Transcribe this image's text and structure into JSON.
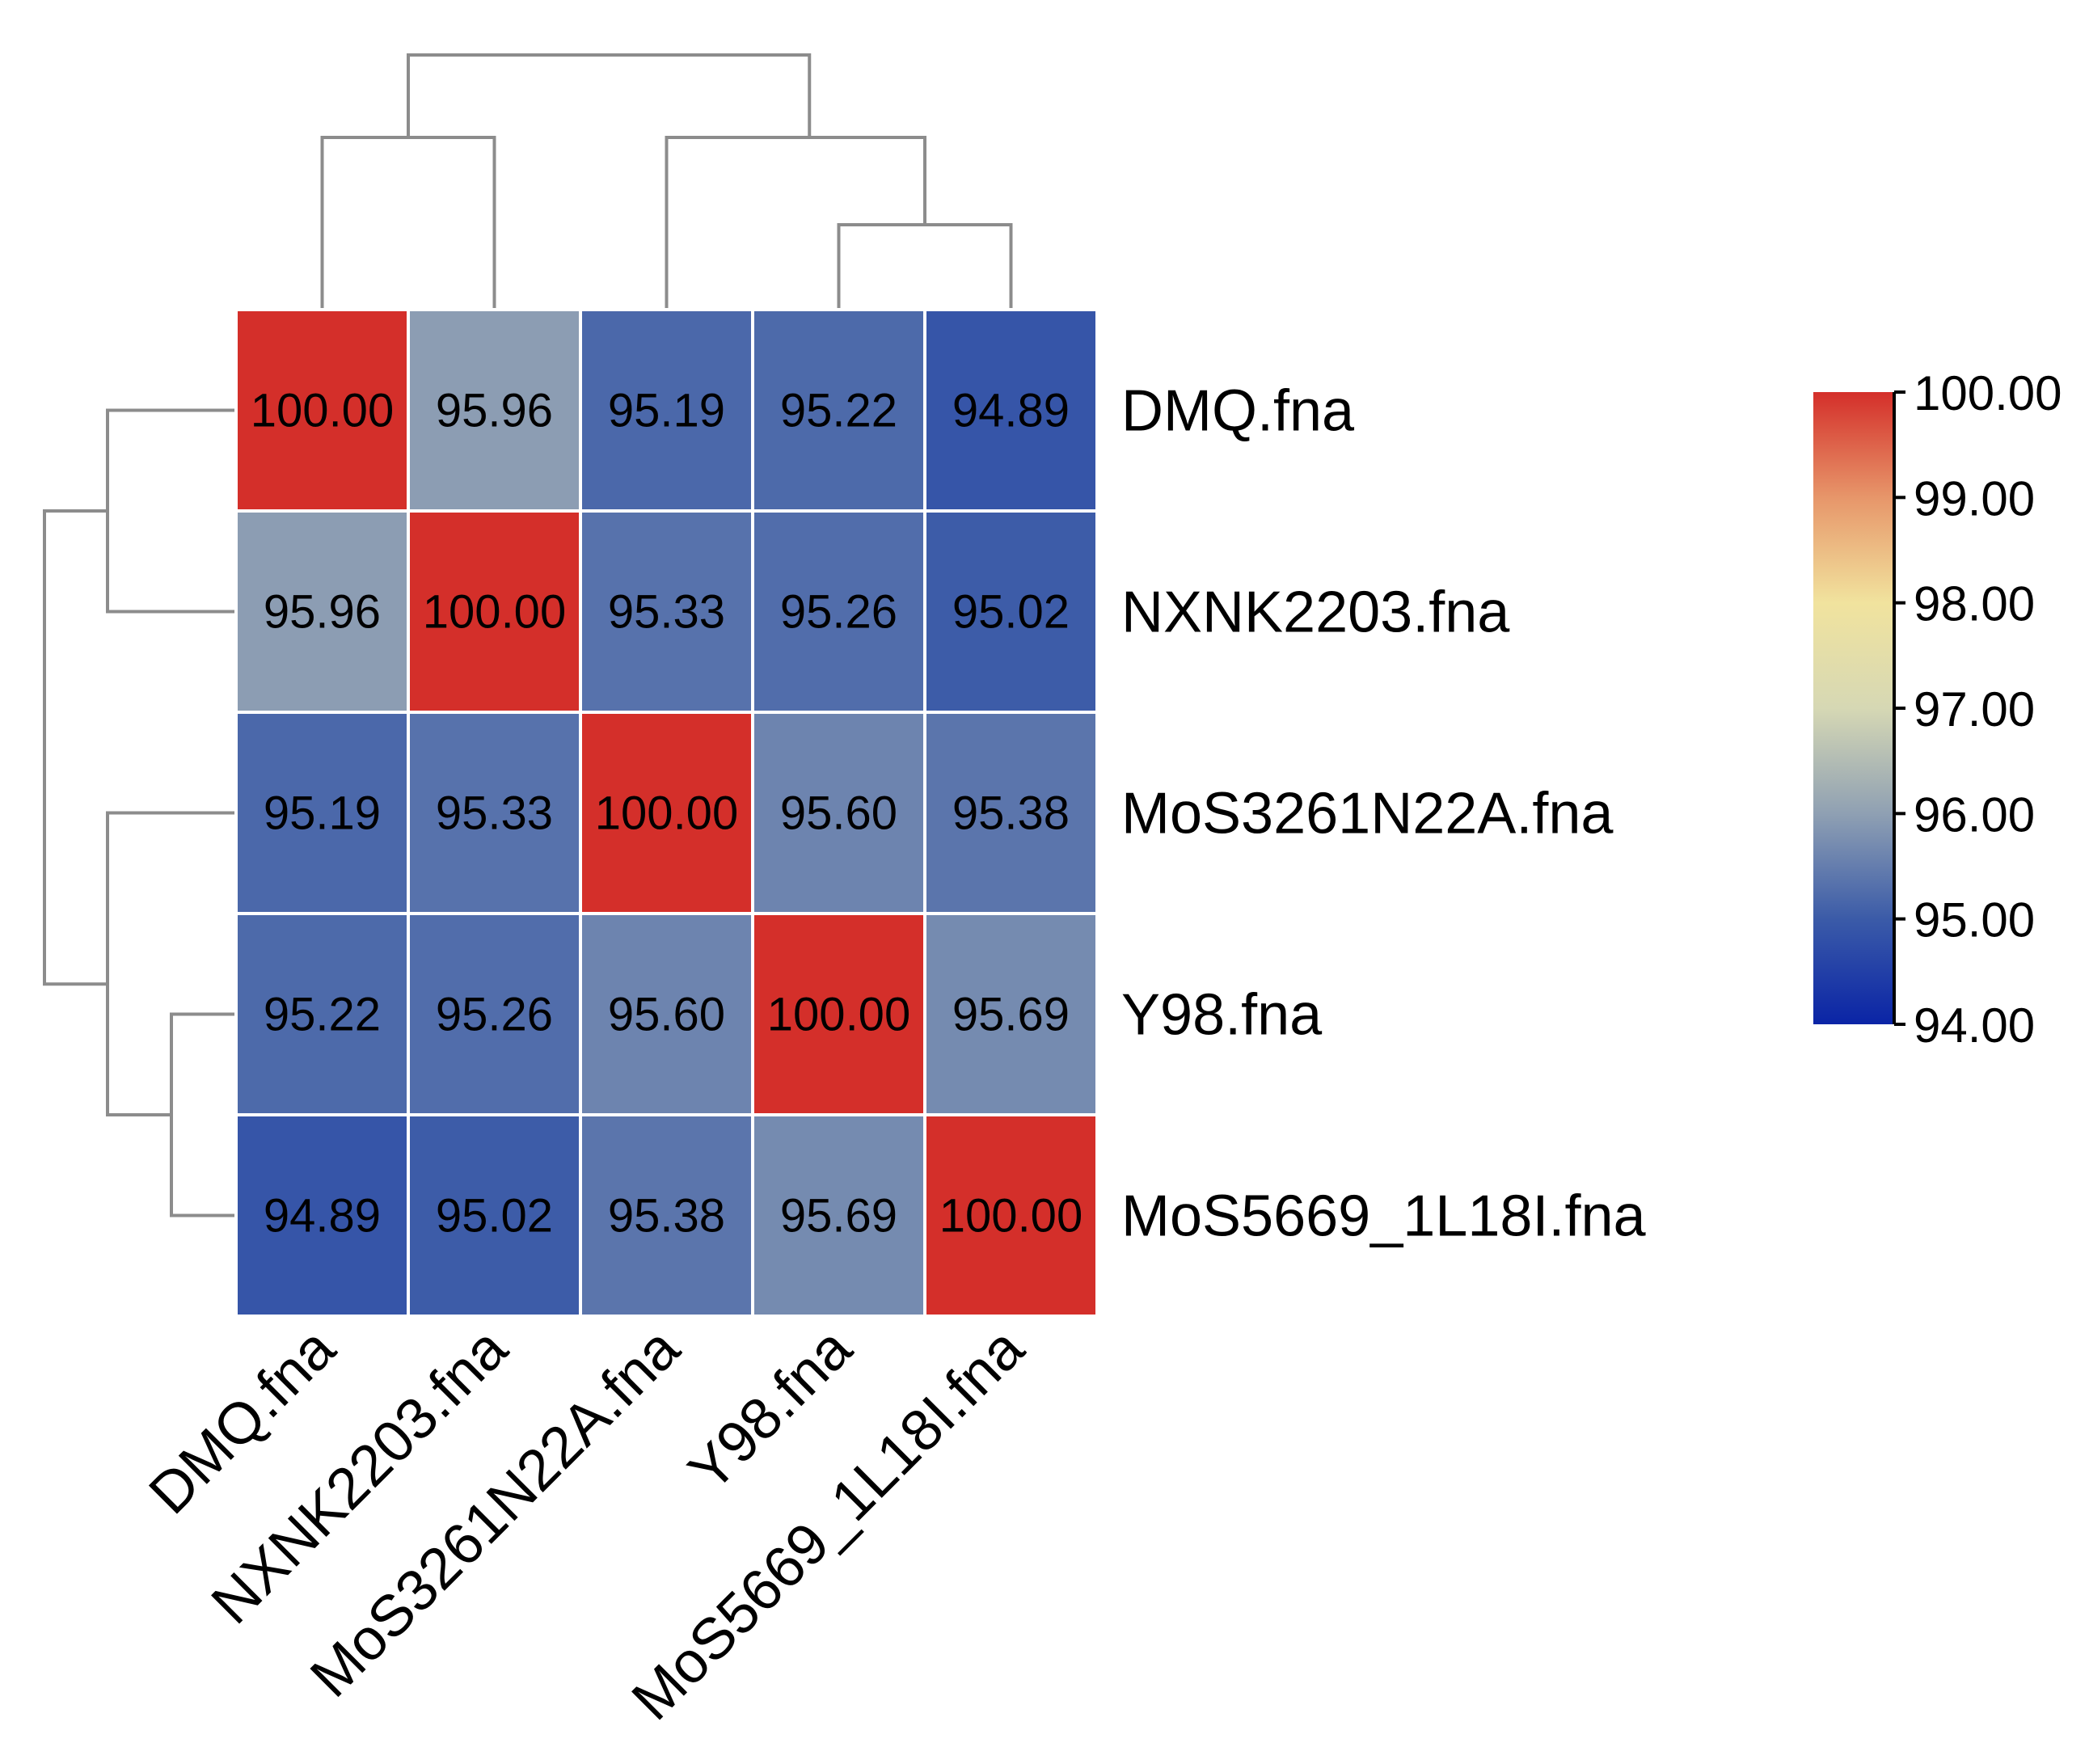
{
  "chart_data": {
    "type": "heatmap",
    "title": "",
    "xlabel": "",
    "ylabel": "",
    "rows": [
      "DMQ.fna",
      "NXNK2203.fna",
      "MoS3261N22A.fna",
      "Y98.fna",
      "MoS5669_1L18I.fna"
    ],
    "columns": [
      "DMQ.fna",
      "NXNK2203.fna",
      "MoS3261N22A.fna",
      "Y98.fna",
      "MoS5669_1L18I.fna"
    ],
    "values": [
      [
        100.0,
        95.96,
        95.19,
        95.22,
        94.89
      ],
      [
        95.96,
        100.0,
        95.33,
        95.26,
        95.02
      ],
      [
        95.19,
        95.33,
        100.0,
        95.6,
        95.38
      ],
      [
        95.22,
        95.26,
        95.6,
        100.0,
        95.69
      ],
      [
        94.89,
        95.02,
        95.38,
        95.69,
        100.0
      ]
    ],
    "cell_labels": [
      [
        "100.00",
        "95.96",
        "95.19",
        "95.22",
        "94.89"
      ],
      [
        "95.96",
        "100.00",
        "95.33",
        "95.26",
        "95.02"
      ],
      [
        "95.19",
        "95.33",
        "100.00",
        "95.60",
        "95.38"
      ],
      [
        "95.22",
        "95.26",
        "95.60",
        "100.00",
        "95.69"
      ],
      [
        "94.89",
        "95.02",
        "95.38",
        "95.69",
        "100.00"
      ]
    ],
    "dendrogram": {
      "columns_merges": [
        [
          3,
          4
        ],
        [
          2,
          "Y98+MoS5669"
        ],
        [
          0,
          1
        ],
        [
          "DMQ+NXNK",
          "MoS3261+Y98+MoS5669"
        ]
      ],
      "rows_merges": [
        [
          3,
          4
        ],
        [
          2,
          "Y98+MoS5669"
        ],
        [
          0,
          1
        ],
        [
          "DMQ+NXNK",
          "MoS3261+Y98+MoS5669"
        ]
      ],
      "line_color": "#8c8c8c"
    },
    "colorbar": {
      "min": 94.0,
      "max": 100.0,
      "ticks": [
        "100.00",
        "99.00",
        "98.00",
        "97.00",
        "96.00",
        "95.00",
        "94.00"
      ],
      "tick_values": [
        100,
        99,
        98,
        97,
        96,
        95,
        94
      ],
      "colorscale": [
        [
          94.0,
          "#0a24a6"
        ],
        [
          95.0,
          "#3b5ba8"
        ],
        [
          96.0,
          "#8fa0b3"
        ],
        [
          97.0,
          "#d6d8b4"
        ],
        [
          98.0,
          "#f1e39e"
        ],
        [
          99.0,
          "#e7966a"
        ],
        [
          100.0,
          "#d42f2a"
        ]
      ]
    },
    "legend": "colorbar at right"
  }
}
